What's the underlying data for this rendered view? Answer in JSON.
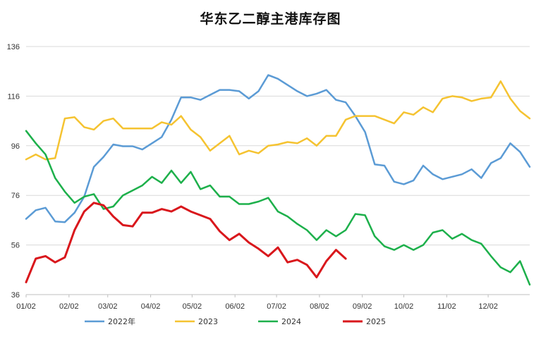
{
  "chart_data": {
    "type": "line",
    "title": "华东乙二醇主港库存图",
    "xlabel": "",
    "ylabel": "",
    "ylim": [
      36,
      136
    ],
    "yticks": [
      36,
      56,
      76,
      96,
      116,
      136
    ],
    "xlim": [
      1,
      53
    ],
    "xticks": [
      {
        "label": "01/02",
        "week": 1
      },
      {
        "label": "02/02",
        "week": 5.43
      },
      {
        "label": "03/02",
        "week": 9.43
      },
      {
        "label": "04/02",
        "week": 13.86
      },
      {
        "label": "05/02",
        "week": 18.14
      },
      {
        "label": "06/02",
        "week": 22.57
      },
      {
        "label": "07/02",
        "week": 26.86
      },
      {
        "label": "08/02",
        "week": 31.29
      },
      {
        "label": "09/02",
        "week": 35.71
      },
      {
        "label": "10/02",
        "week": 40
      },
      {
        "label": "11/02",
        "week": 44.43
      },
      {
        "label": "12/02",
        "week": 48.71
      }
    ],
    "grid": true,
    "legend_position": "bottom",
    "series": [
      {
        "name": "2022年",
        "color": "#5b9bd5",
        "x": [
          1,
          2,
          3,
          4,
          5,
          6,
          7,
          8,
          9,
          10,
          11,
          12,
          13,
          14,
          15,
          16,
          17,
          18,
          19,
          20,
          21,
          22,
          23,
          24,
          25,
          26,
          27,
          28,
          29,
          30,
          31,
          32,
          33,
          34,
          35,
          36,
          37,
          38,
          39,
          40,
          41,
          42,
          43,
          44,
          45,
          46,
          47,
          48,
          49,
          50,
          51,
          52,
          53
        ],
        "values": [
          66.5,
          70,
          71,
          65.5,
          65.2,
          69,
          75.5,
          87.5,
          91.5,
          96.5,
          95.8,
          95.8,
          94.5,
          97,
          99.5,
          106.5,
          115.5,
          115.5,
          114.5,
          116.5,
          118.5,
          118.5,
          118,
          115,
          118,
          124.5,
          123,
          120.5,
          118,
          116,
          117,
          118.5,
          114.5,
          113.5,
          108,
          101.5,
          88.5,
          88,
          81.5,
          80.5,
          82,
          88,
          84.5,
          82.5,
          83.5,
          84.5,
          86.5,
          83,
          89,
          91,
          97,
          93.5,
          87.5
        ]
      },
      {
        "name": "2023",
        "color": "#f5c331",
        "x": [
          1,
          2,
          3,
          4,
          5,
          6,
          7,
          8,
          9,
          10,
          11,
          12,
          13,
          14,
          15,
          16,
          17,
          18,
          19,
          20,
          21,
          22,
          23,
          24,
          25,
          26,
          27,
          28,
          29,
          30,
          31,
          32,
          33,
          34,
          35,
          36,
          37,
          38,
          39,
          40,
          41,
          42,
          43,
          44,
          45,
          46,
          47,
          48,
          49,
          50,
          51,
          52,
          53
        ],
        "values": [
          90.5,
          92.5,
          90.5,
          91,
          107,
          107.5,
          103.5,
          102.5,
          106,
          107,
          103,
          103,
          103,
          103,
          105.5,
          104.5,
          108,
          102.5,
          99.5,
          94,
          97,
          100,
          92.5,
          94,
          93,
          96,
          96.5,
          97.5,
          97,
          99,
          96,
          100,
          100,
          106.5,
          108,
          108,
          108,
          106.5,
          105,
          109.5,
          108.5,
          111.5,
          109.5,
          115,
          116,
          115.5,
          114,
          115,
          115.5,
          122,
          115,
          110,
          107
        ]
      },
      {
        "name": "2024",
        "color": "#1db04b",
        "x": [
          1,
          2,
          3,
          4,
          5,
          6,
          7,
          8,
          9,
          10,
          11,
          12,
          13,
          14,
          15,
          16,
          17,
          18,
          19,
          20,
          21,
          22,
          23,
          24,
          25,
          26,
          27,
          28,
          29,
          30,
          31,
          32,
          33,
          34,
          35,
          36,
          37,
          38,
          39,
          40,
          41,
          42,
          43,
          44,
          45,
          46,
          47,
          48,
          49,
          50,
          51,
          52,
          53
        ],
        "values": [
          102,
          97,
          92.5,
          83,
          77.5,
          73,
          75.5,
          76.5,
          70.5,
          71.5,
          76,
          78,
          80,
          83.5,
          81,
          86,
          81,
          85.5,
          78.5,
          80,
          75.5,
          75.5,
          72.5,
          72.5,
          73.5,
          75,
          69.5,
          67.5,
          64.5,
          62,
          58,
          62,
          59.5,
          62,
          68.5,
          68,
          59.5,
          55.5,
          54,
          56,
          54,
          56,
          61,
          62,
          58.5,
          60.5,
          58,
          56.5,
          51.5,
          47,
          45,
          49.5,
          40
        ]
      },
      {
        "name": "2025",
        "color": "#d9171c",
        "x": [
          1,
          2,
          3,
          4,
          5,
          6,
          7,
          8,
          9,
          10,
          11,
          12,
          13,
          14,
          15,
          16,
          17,
          18,
          19,
          20,
          21,
          22,
          23,
          24,
          25,
          26,
          27,
          28,
          29,
          30,
          31,
          32,
          33,
          34
        ],
        "values": [
          41,
          50.5,
          51.5,
          49,
          51,
          62,
          69.5,
          73,
          72,
          67.5,
          64,
          63.5,
          69,
          69,
          70.5,
          69.5,
          71.5,
          69.5,
          68,
          66.5,
          61.5,
          58,
          60.5,
          57,
          54.5,
          51.5,
          55,
          49,
          50,
          48,
          43,
          49.5,
          54,
          50.5
        ]
      }
    ]
  }
}
